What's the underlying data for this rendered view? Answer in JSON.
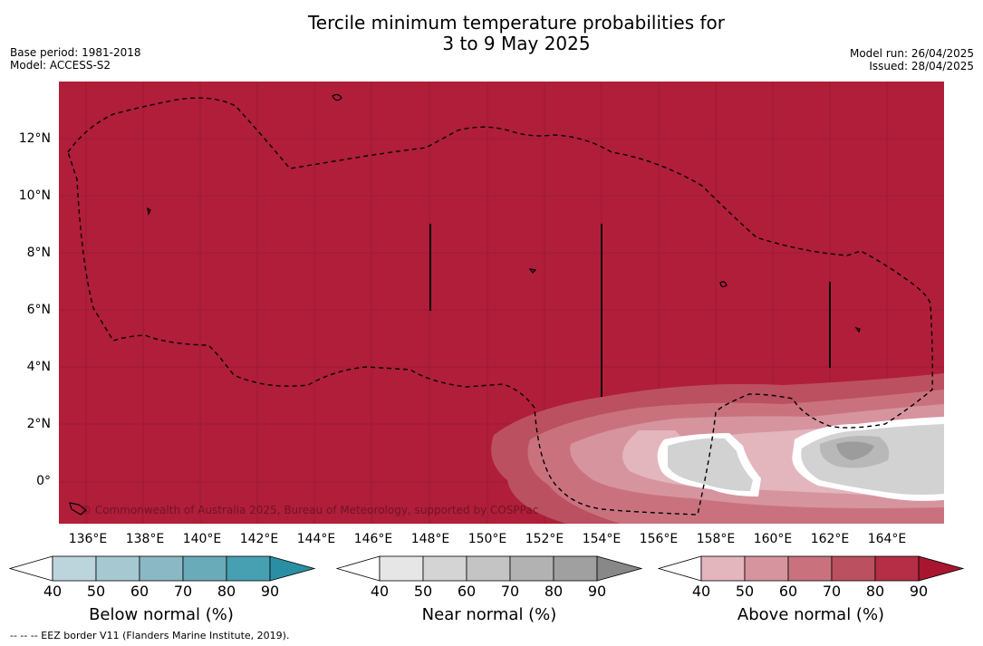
{
  "title_line1": "Tercile minimum temperature probabilities for",
  "title_line2": "3 to 9 May 2025",
  "meta": {
    "base_period": "Base period: 1981-2018",
    "model": "Model: ACCESS-S2",
    "model_run": "Model run: 26/04/2025",
    "issued": "Issued: 28/04/2025"
  },
  "map": {
    "background_color": "#b01e3a",
    "lat_labels": [
      "12°N",
      "10°N",
      "8°N",
      "6°N",
      "4°N",
      "2°N",
      "0°"
    ],
    "lon_labels": [
      "136°E",
      "138°E",
      "140°E",
      "142°E",
      "144°E",
      "146°E",
      "148°E",
      "150°E",
      "152°E",
      "154°E",
      "156°E",
      "158°E",
      "160°E",
      "162°E",
      "164°E"
    ],
    "copyright": "© Commonwealth of Australia 2025, Bureau of Meteorology, supported by COSPPac"
  },
  "colorbars": [
    {
      "title": "Below normal (%)",
      "ticks": [
        "40",
        "50",
        "60",
        "70",
        "80",
        "90"
      ],
      "colors": [
        "#ffffff",
        "#bcd5dc",
        "#a6c8d0",
        "#8ab8c4",
        "#6aabba",
        "#47a0b2",
        "#2b8fa3"
      ]
    },
    {
      "title": "Near normal (%)",
      "ticks": [
        "40",
        "50",
        "60",
        "70",
        "80",
        "90"
      ],
      "colors": [
        "#ffffff",
        "#e6e6e6",
        "#d4d4d4",
        "#c4c4c4",
        "#b2b2b2",
        "#a0a0a0",
        "#888888"
      ]
    },
    {
      "title": "Above normal (%)",
      "ticks": [
        "40",
        "50",
        "60",
        "70",
        "80",
        "90"
      ],
      "colors": [
        "#ffffff",
        "#e3b5bd",
        "#d6949e",
        "#c9727e",
        "#bb5060",
        "#b52e46",
        "#a8152f"
      ]
    }
  ],
  "footer": "-- -- -- EEZ border V11 (Flanders Marine Institute, 2019)."
}
